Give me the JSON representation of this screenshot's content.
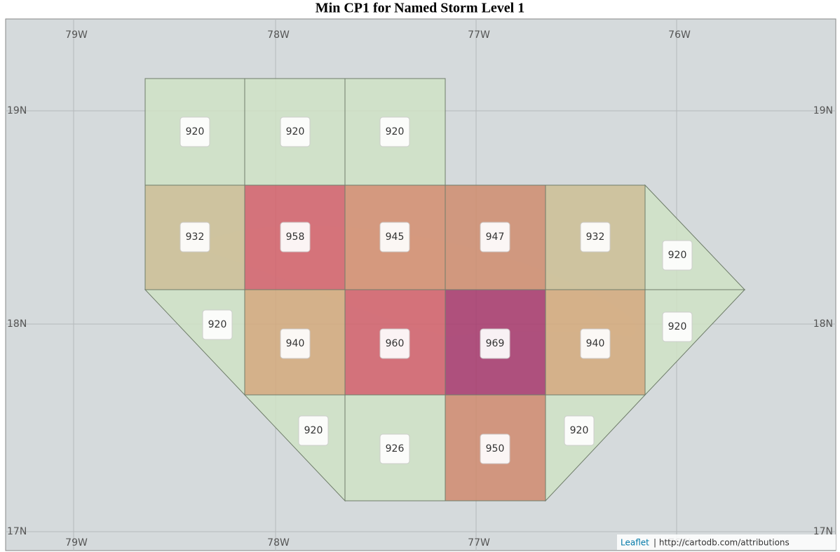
{
  "title": "Min CP1 for Named Storm Level 1",
  "longitudes": [
    "79W",
    "78W",
    "77W",
    "76W"
  ],
  "latitudes": [
    "19N",
    "18N",
    "17N"
  ],
  "cells": [
    {
      "value": 920,
      "color": "#cfe2c6"
    },
    {
      "value": 920,
      "color": "#cfe2c6"
    },
    {
      "value": 920,
      "color": "#cfe2c6"
    },
    {
      "value": 932,
      "color": "#cdbe94"
    },
    {
      "value": 958,
      "color": "#d3606a"
    },
    {
      "value": 945,
      "color": "#d38d6e"
    },
    {
      "value": 947,
      "color": "#cf8c6f"
    },
    {
      "value": 932,
      "color": "#cdbe94"
    },
    {
      "value": 920,
      "color": "#cfe2c6"
    },
    {
      "value": 920,
      "color": "#cfe2c6"
    },
    {
      "value": 940,
      "color": "#d4a97b"
    },
    {
      "value": 960,
      "color": "#d25f6a"
    },
    {
      "value": 969,
      "color": "#a7376c"
    },
    {
      "value": 940,
      "color": "#d4a97b"
    },
    {
      "value": 920,
      "color": "#cfe2c6"
    },
    {
      "value": 920,
      "color": "#cfe2c6"
    },
    {
      "value": 926,
      "color": "#cfe2c6"
    },
    {
      "value": 950,
      "color": "#d08a6e"
    },
    {
      "value": 920,
      "color": "#cfe2c6"
    }
  ],
  "attribution": {
    "link": "Leaflet",
    "text": "| http://cartodb.com/attributions"
  }
}
